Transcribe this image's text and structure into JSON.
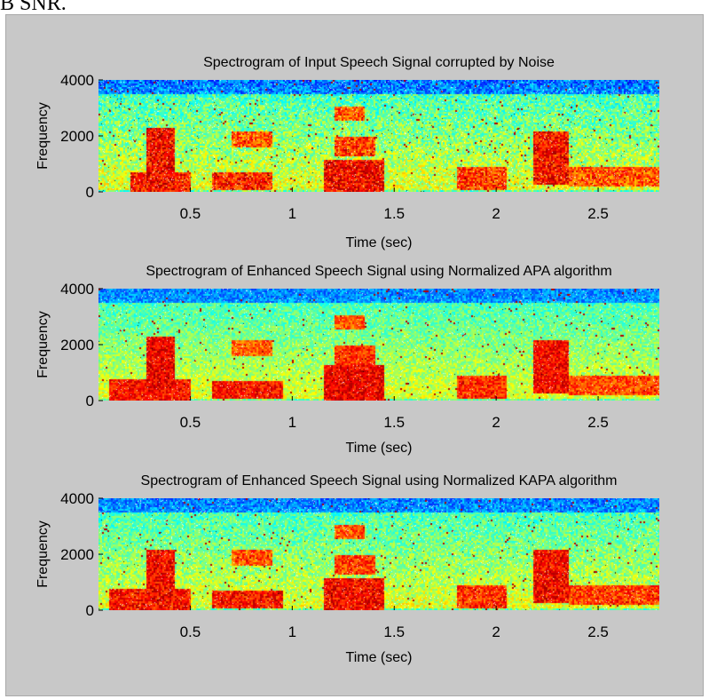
{
  "page": {
    "top_caption": "B SNR."
  },
  "colors": {
    "figure_background": "#c8c8c8"
  },
  "chart_data": [
    {
      "type": "heatmap",
      "title": "Spectrogram of Input Speech Signal corrupted by Noise",
      "xlabel": "Time (sec)",
      "ylabel": "Frequency",
      "xlim": [
        0.05,
        2.8
      ],
      "ylim": [
        0,
        4000
      ],
      "xticks": [
        0.5,
        1,
        1.5,
        2,
        2.5
      ],
      "xtick_labels": [
        "0.5",
        "1",
        "1.5",
        "2",
        "2.5"
      ],
      "yticks": [
        0,
        2000,
        4000
      ],
      "ytick_labels": [
        "0",
        "2000",
        "4000"
      ],
      "noise_level": 1.0,
      "energy_regions": [
        {
          "t": [
            0.28,
            0.42
          ],
          "f": [
            300,
            2300
          ],
          "level": 0.9
        },
        {
          "t": [
            0.2,
            0.5
          ],
          "f": [
            0,
            700
          ],
          "level": 0.85
        },
        {
          "t": [
            0.6,
            0.9
          ],
          "f": [
            100,
            700
          ],
          "level": 0.8
        },
        {
          "t": [
            0.7,
            0.9
          ],
          "f": [
            1600,
            2200
          ],
          "level": 0.6
        },
        {
          "t": [
            1.15,
            1.45
          ],
          "f": [
            0,
            1200
          ],
          "level": 0.9
        },
        {
          "t": [
            1.2,
            1.4
          ],
          "f": [
            1300,
            2000
          ],
          "level": 0.7
        },
        {
          "t": [
            1.2,
            1.35
          ],
          "f": [
            2600,
            3100
          ],
          "level": 0.6
        },
        {
          "t": [
            1.8,
            2.05
          ],
          "f": [
            100,
            900
          ],
          "level": 0.7
        },
        {
          "t": [
            2.18,
            2.35
          ],
          "f": [
            300,
            2200
          ],
          "level": 0.85
        },
        {
          "t": [
            2.35,
            2.8
          ],
          "f": [
            200,
            900
          ],
          "level": 0.6
        }
      ]
    },
    {
      "type": "heatmap",
      "title": "Spectrogram of Enhanced Speech Signal using Normalized APA algorithm",
      "xlabel": "Time (sec)",
      "ylabel": "Frequency",
      "xlim": [
        0.05,
        2.8
      ],
      "ylim": [
        0,
        4000
      ],
      "xticks": [
        0.5,
        1,
        1.5,
        2,
        2.5
      ],
      "xtick_labels": [
        "0.5",
        "1",
        "1.5",
        "2",
        "2.5"
      ],
      "yticks": [
        0,
        2000,
        4000
      ],
      "ytick_labels": [
        "0",
        "2000",
        "4000"
      ],
      "noise_level": 0.75,
      "energy_regions": [
        {
          "t": [
            0.28,
            0.42
          ],
          "f": [
            300,
            2300
          ],
          "level": 0.95
        },
        {
          "t": [
            0.1,
            0.5
          ],
          "f": [
            0,
            800
          ],
          "level": 0.85
        },
        {
          "t": [
            0.6,
            0.95
          ],
          "f": [
            100,
            700
          ],
          "level": 0.85
        },
        {
          "t": [
            0.7,
            0.9
          ],
          "f": [
            1600,
            2200
          ],
          "level": 0.6
        },
        {
          "t": [
            1.15,
            1.45
          ],
          "f": [
            0,
            1300
          ],
          "level": 0.95
        },
        {
          "t": [
            1.2,
            1.4
          ],
          "f": [
            1300,
            2000
          ],
          "level": 0.75
        },
        {
          "t": [
            1.2,
            1.35
          ],
          "f": [
            2600,
            3100
          ],
          "level": 0.6
        },
        {
          "t": [
            1.8,
            2.05
          ],
          "f": [
            100,
            900
          ],
          "level": 0.75
        },
        {
          "t": [
            2.18,
            2.35
          ],
          "f": [
            300,
            2200
          ],
          "level": 0.9
        },
        {
          "t": [
            2.35,
            2.8
          ],
          "f": [
            200,
            900
          ],
          "level": 0.65
        }
      ]
    },
    {
      "type": "heatmap",
      "title": "Spectrogram of Enhanced Speech Signal using Normalized KAPA algorithm",
      "xlabel": "Time (sec)",
      "ylabel": "Frequency",
      "xlim": [
        0.05,
        2.8
      ],
      "ylim": [
        0,
        4000
      ],
      "xticks": [
        0.5,
        1,
        1.5,
        2,
        2.5
      ],
      "xtick_labels": [
        "0.5",
        "1",
        "1.5",
        "2",
        "2.5"
      ],
      "yticks": [
        0,
        2000,
        4000
      ],
      "ytick_labels": [
        "0",
        "2000",
        "4000"
      ],
      "noise_level": 0.85,
      "energy_regions": [
        {
          "t": [
            0.28,
            0.42
          ],
          "f": [
            300,
            2200
          ],
          "level": 0.9
        },
        {
          "t": [
            0.1,
            0.5
          ],
          "f": [
            0,
            800
          ],
          "level": 0.85
        },
        {
          "t": [
            0.6,
            0.95
          ],
          "f": [
            100,
            700
          ],
          "level": 0.85
        },
        {
          "t": [
            0.7,
            0.9
          ],
          "f": [
            1600,
            2200
          ],
          "level": 0.6
        },
        {
          "t": [
            1.15,
            1.45
          ],
          "f": [
            0,
            1200
          ],
          "level": 0.9
        },
        {
          "t": [
            1.2,
            1.4
          ],
          "f": [
            1300,
            2000
          ],
          "level": 0.7
        },
        {
          "t": [
            1.2,
            1.35
          ],
          "f": [
            2600,
            3100
          ],
          "level": 0.6
        },
        {
          "t": [
            1.8,
            2.05
          ],
          "f": [
            100,
            900
          ],
          "level": 0.75
        },
        {
          "t": [
            2.18,
            2.35
          ],
          "f": [
            300,
            2200
          ],
          "level": 0.9
        },
        {
          "t": [
            2.35,
            2.8
          ],
          "f": [
            200,
            900
          ],
          "level": 0.7
        }
      ]
    }
  ]
}
